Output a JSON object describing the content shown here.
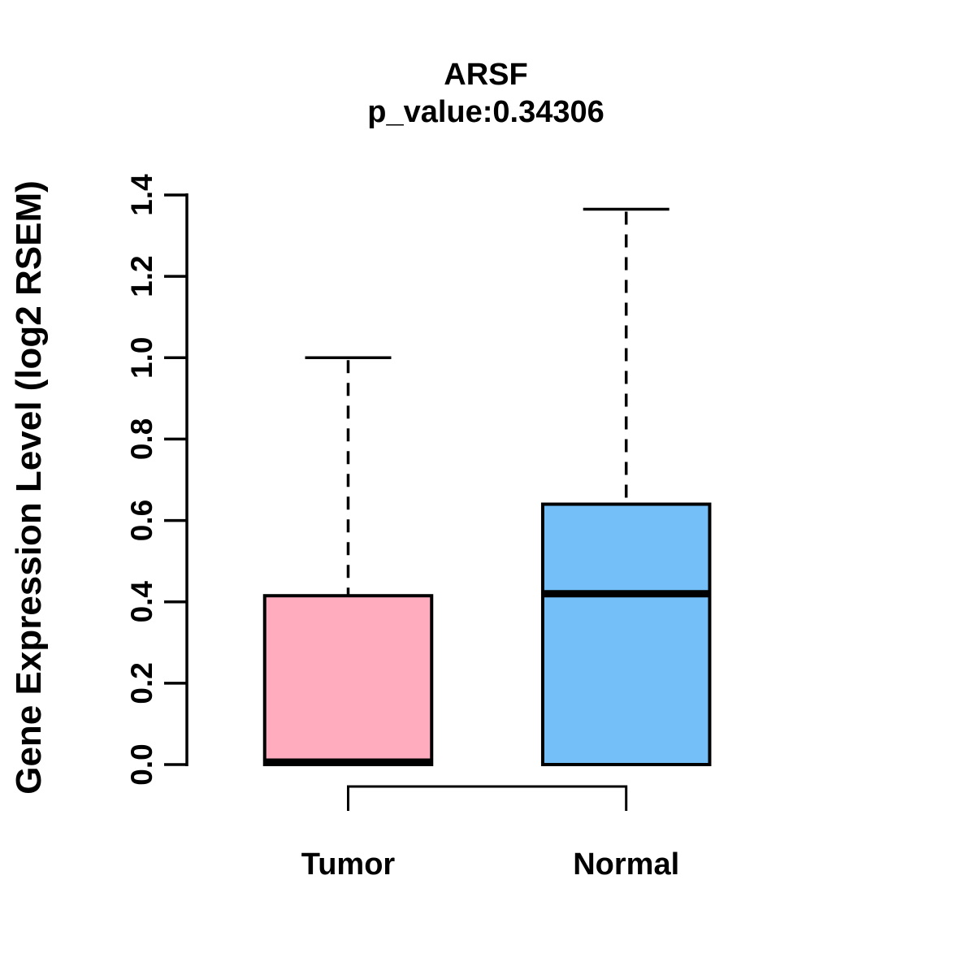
{
  "figure": {
    "background_color": "#FFFFFF"
  },
  "chart_data": {
    "type": "boxplot",
    "title": "ARSF",
    "subtitle": "p_value:0.34306",
    "ylabel": "Gene Expression Level (log2 RSEM)",
    "xlabel": "",
    "ylim": [
      0.0,
      1.4
    ],
    "ytick_labels": [
      "0.0",
      "0.2",
      "0.4",
      "0.6",
      "0.8",
      "1.0",
      "1.2",
      "1.4"
    ],
    "grid": false,
    "legend_position": "none",
    "categories": [
      "Tumor",
      "Normal"
    ],
    "series": [
      {
        "name": "Tumor",
        "fill_color": "#FFADBE",
        "box_stats": {
          "lower_whisker": 0.0,
          "q1": 0.0,
          "median": 0.0,
          "q3": 0.415,
          "upper_whisker": 1.0
        }
      },
      {
        "name": "Normal",
        "fill_color": "#74BFF8",
        "box_stats": {
          "lower_whisker": 0.0,
          "q1": 0.0,
          "median": 0.42,
          "q3": 0.64,
          "upper_whisker": 1.365
        }
      }
    ],
    "comparison_bracket": {
      "from": "Tumor",
      "to": "Normal"
    },
    "stroke_color": "#000000"
  }
}
